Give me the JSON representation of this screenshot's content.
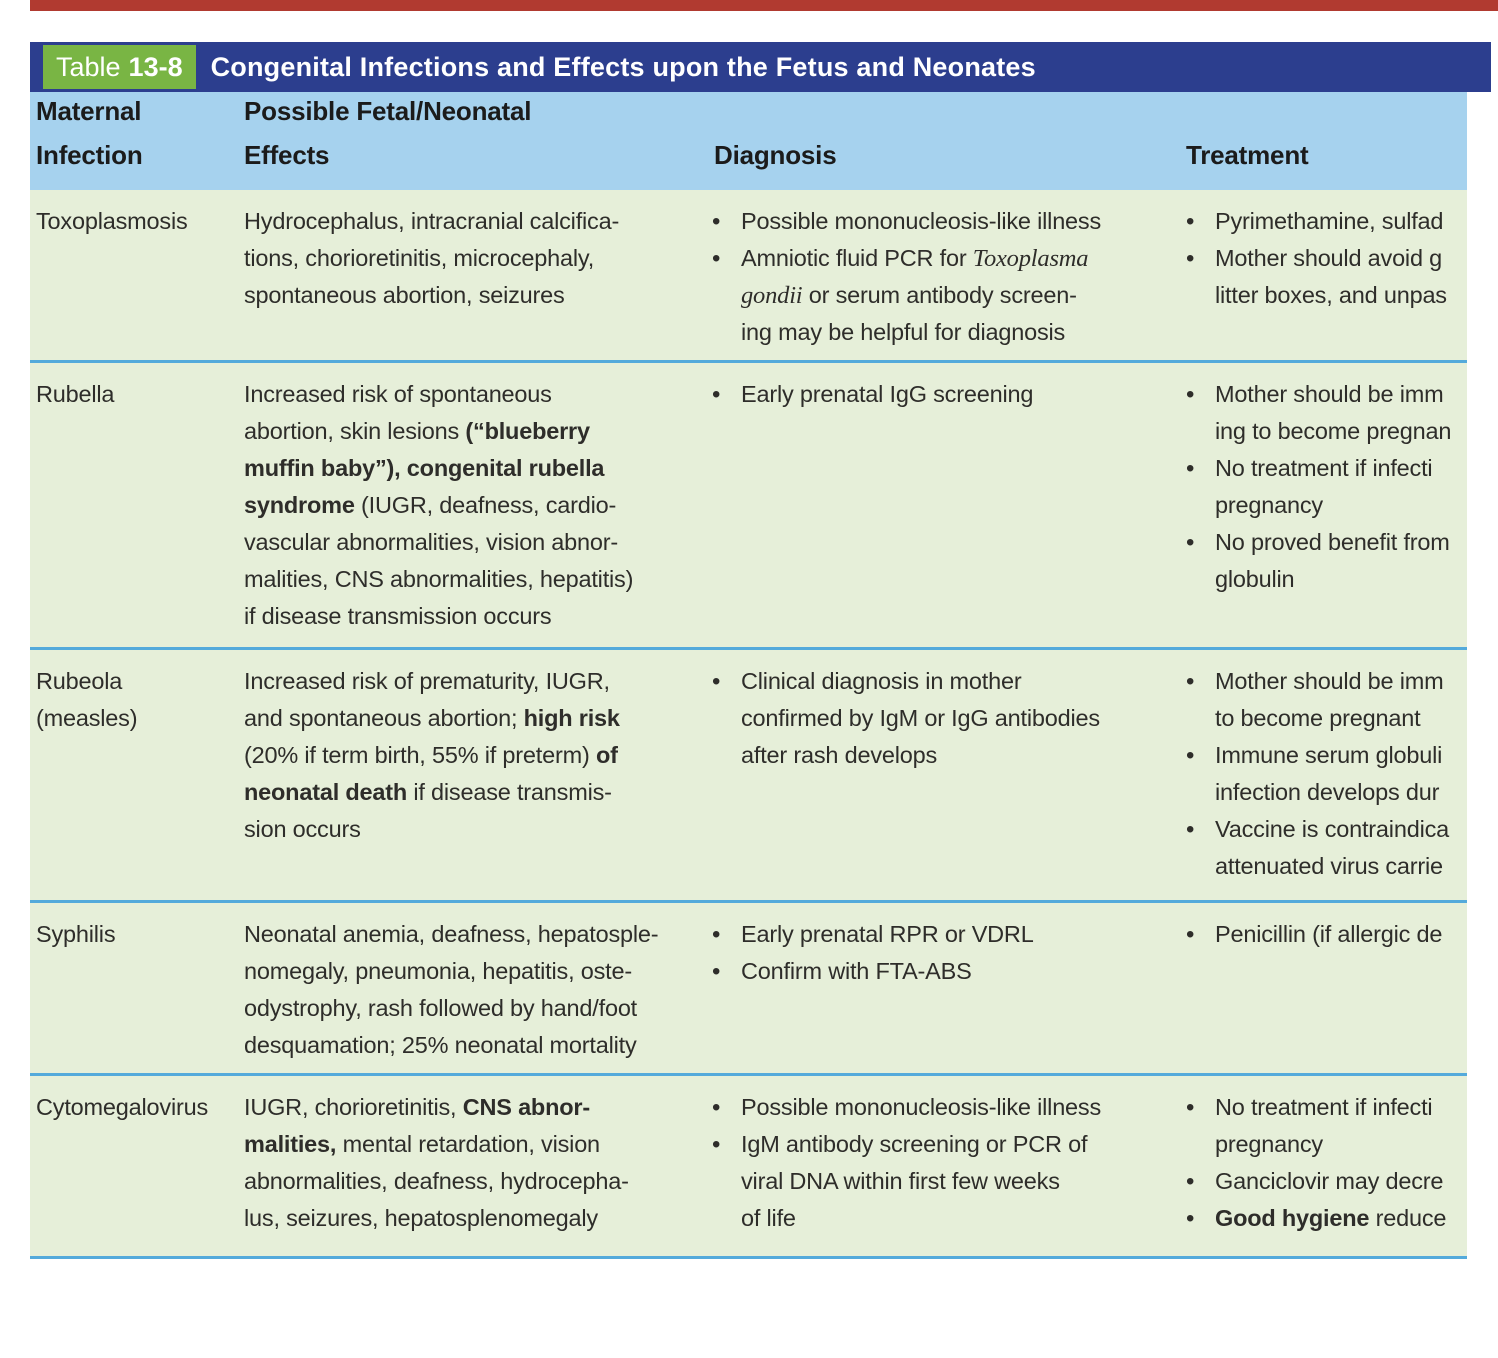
{
  "colors": {
    "page_rule_red": "#b13a30",
    "title_bar_navy": "#2c3e8e",
    "badge_green": "#79b544",
    "header_blue": "#a6d2ee",
    "row_green": "#e6efd9",
    "divider_blue": "#54aadb",
    "text": "#2e2d2a"
  },
  "table": {
    "badge": {
      "label": "Table",
      "number": "13-8"
    },
    "title": "Congenital Infections and Effects upon the Fetus and Neonates",
    "columns": [
      {
        "id": "maternal-infection",
        "lines": [
          "Maternal",
          "Infection"
        ]
      },
      {
        "id": "fetal-neonatal-effects",
        "lines": [
          "Possible Fetal/Neonatal",
          "Effects"
        ]
      },
      {
        "id": "diagnosis",
        "lines": [
          "Diagnosis"
        ]
      },
      {
        "id": "treatment",
        "lines": [
          "Treatment"
        ]
      }
    ],
    "rows": [
      {
        "infection": [
          "Toxoplasmosis"
        ],
        "effects": [
          "Hydrocephalus, intracranial calcifica-",
          "tions, chorioretinitis, microcephaly,",
          "spontaneous abortion, seizures"
        ],
        "diagnosis": [
          [
            [
              "Possible mononucleosis-like illness"
            ]
          ],
          [
            [
              {
                "t": "Amniotic fluid PCR for "
              },
              {
                "t": "Toxoplasma",
                "i": true
              }
            ],
            [
              {
                "t": "gondii",
                "i": true
              },
              {
                "t": " or serum antibody screen-"
              }
            ],
            [
              "ing may be helpful for diagnosis"
            ]
          ]
        ],
        "treatment": [
          [
            [
              "Pyrimethamine, sulfad"
            ]
          ],
          [
            [
              "Mother should avoid g"
            ],
            [
              "litter boxes, and unpas"
            ]
          ]
        ]
      },
      {
        "infection": [
          "Rubella"
        ],
        "effects": [
          "Increased risk of spontaneous",
          [
            {
              "t": "abortion, skin lesions "
            },
            {
              "t": "(“blueberry",
              "b": true
            }
          ],
          [
            {
              "t": "muffin baby”), congenital rubella",
              "b": true
            }
          ],
          [
            {
              "t": "syndrome",
              "b": true
            },
            {
              "t": " (IUGR, deafness, cardio-"
            }
          ],
          "vascular abnormalities, vision abnor-",
          "malities, CNS abnormalities, hepatitis)",
          "if disease transmission occurs"
        ],
        "diagnosis": [
          [
            [
              "Early prenatal IgG screening"
            ]
          ]
        ],
        "treatment": [
          [
            [
              "Mother should be imm"
            ],
            [
              "ing to become pregnan"
            ]
          ],
          [
            [
              "No treatment if infecti"
            ],
            [
              "pregnancy"
            ]
          ],
          [
            [
              "No proved benefit from"
            ],
            [
              "globulin"
            ]
          ]
        ]
      },
      {
        "infection": [
          "Rubeola",
          "(measles)"
        ],
        "effects": [
          "Increased risk of prematurity, IUGR,",
          [
            {
              "t": "and spontaneous abortion; "
            },
            {
              "t": "high risk",
              "b": true
            }
          ],
          [
            {
              "t": "(20% if term birth, 55% if preterm) "
            },
            {
              "t": "of",
              "b": true
            }
          ],
          [
            {
              "t": "neonatal death",
              "b": true
            },
            {
              "t": " if disease transmis-"
            }
          ],
          "sion occurs"
        ],
        "diagnosis": [
          [
            [
              "Clinical diagnosis in mother"
            ],
            [
              "confirmed by IgM or IgG antibodies"
            ],
            [
              "after rash develops"
            ]
          ]
        ],
        "treatment": [
          [
            [
              "Mother should be imm"
            ],
            [
              "to become pregnant"
            ]
          ],
          [
            [
              "Immune serum globuli"
            ],
            [
              "infection develops dur"
            ]
          ],
          [
            [
              "Vaccine is contraindica"
            ],
            [
              "attenuated virus carrie"
            ]
          ]
        ]
      },
      {
        "infection": [
          "Syphilis"
        ],
        "effects": [
          "Neonatal anemia, deafness, hepatosple-",
          "nomegaly, pneumonia, hepatitis, oste-",
          "odystrophy, rash followed by hand/foot",
          "desquamation; 25% neonatal mortality"
        ],
        "diagnosis": [
          [
            [
              "Early prenatal RPR or VDRL"
            ]
          ],
          [
            [
              "Confirm with FTA-ABS"
            ]
          ]
        ],
        "treatment": [
          [
            [
              "Penicillin (if allergic de"
            ]
          ]
        ]
      },
      {
        "infection": [
          "Cytomegalovirus"
        ],
        "effects": [
          [
            {
              "t": "IUGR, chorioretinitis, "
            },
            {
              "t": "CNS abnor-",
              "b": true
            }
          ],
          [
            {
              "t": "malities,",
              "b": true
            },
            {
              "t": " mental retardation, vision"
            }
          ],
          "abnormalities, deafness, hydrocepha-",
          "lus, seizures, hepatosplenomegaly"
        ],
        "diagnosis": [
          [
            [
              "Possible mononucleosis-like illness"
            ]
          ],
          [
            [
              "IgM antibody screening or PCR of"
            ],
            [
              "viral DNA within first few weeks"
            ],
            [
              "of life"
            ]
          ]
        ],
        "treatment": [
          [
            [
              "No treatment if infecti"
            ],
            [
              "pregnancy"
            ]
          ],
          [
            [
              "Ganciclovir may decre"
            ]
          ],
          [
            [
              {
                "t": "Good hygiene",
                "b": true
              },
              {
                "t": " reduce"
              }
            ]
          ]
        ]
      }
    ]
  }
}
